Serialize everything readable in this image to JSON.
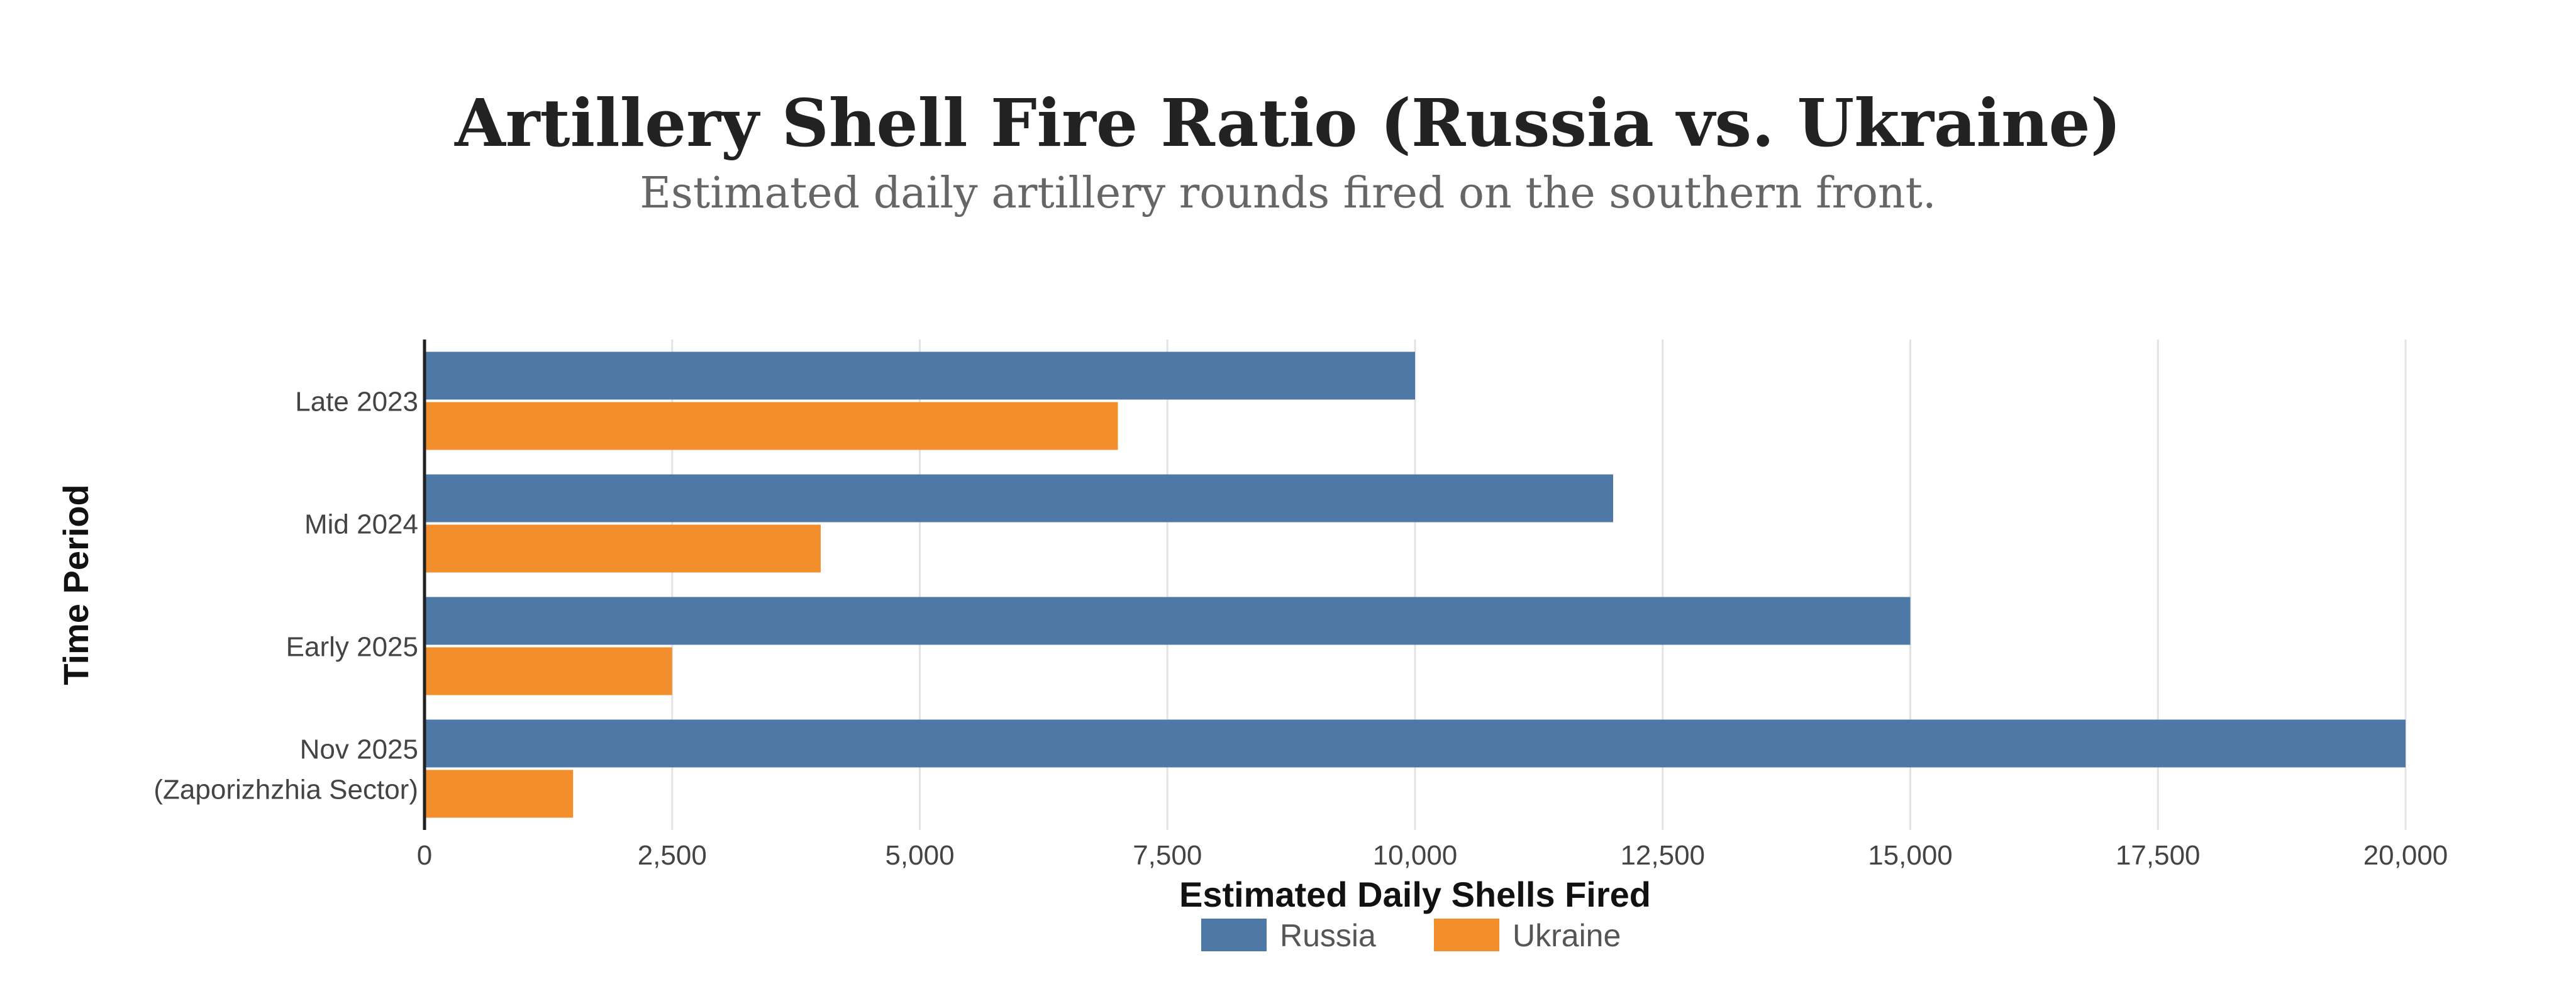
{
  "chart_data": {
    "type": "bar",
    "orientation": "horizontal",
    "title": "Artillery Shell Fire Ratio (Russia vs. Ukraine)",
    "subtitle": "Estimated daily artillery rounds fired on the southern front.",
    "xlabel": "Estimated Daily Shells Fired",
    "ylabel": "Time Period",
    "categories": [
      [
        "Late 2023"
      ],
      [
        "Mid 2024"
      ],
      [
        "Early 2025"
      ],
      [
        "Nov 2025",
        "(Zaporizhzhia Sector)"
      ]
    ],
    "series": [
      {
        "name": "Russia",
        "color": "#4e79a7",
        "values": [
          10000,
          12000,
          15000,
          20000
        ]
      },
      {
        "name": "Ukraine",
        "color": "#f28e2c",
        "values": [
          7000,
          4000,
          2500,
          1500
        ]
      }
    ],
    "xlim": [
      0,
      20000
    ],
    "xticks": [
      0,
      2500,
      5000,
      7500,
      10000,
      12500,
      15000,
      17500,
      20000
    ],
    "xtick_labels": [
      "0",
      "2,500",
      "5,000",
      "7,500",
      "10,000",
      "12,500",
      "15,000",
      "17,500",
      "20,000"
    ],
    "grid": "vertical",
    "legend_position": "bottom-center"
  }
}
